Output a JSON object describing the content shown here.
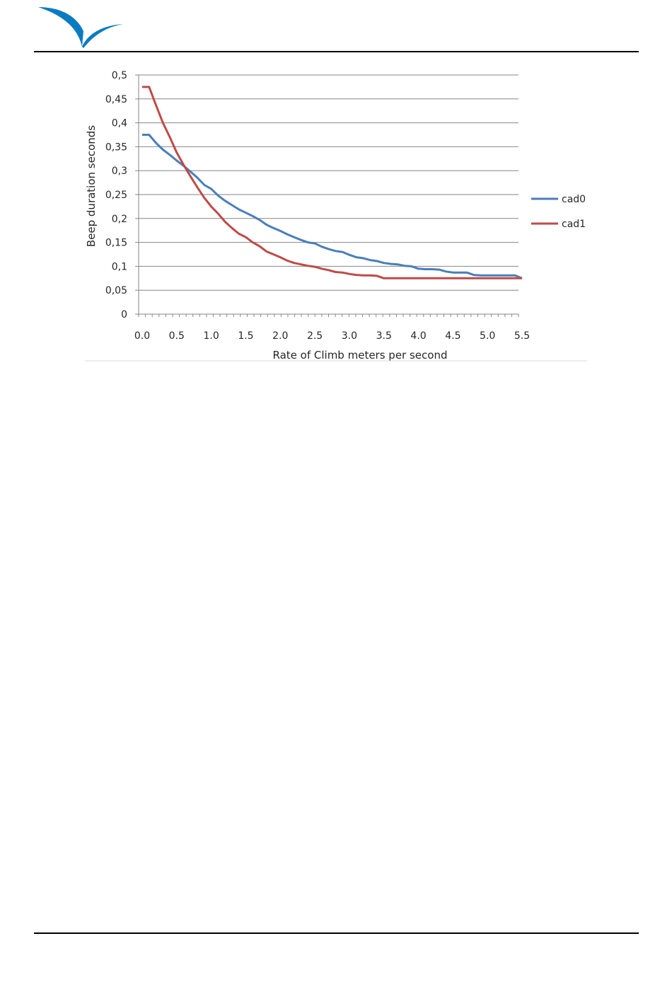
{
  "chart_data": {
    "type": "line",
    "xlabel": "Rate of Climb meters per second",
    "ylabel": "Beep duration seconds",
    "xlim": [
      0,
      5.5
    ],
    "ylim": [
      0,
      0.5
    ],
    "x_tick_labels": [
      "0.0",
      "0.5",
      "1.0",
      "1.5",
      "2.0",
      "2.5",
      "3.0",
      "3.5",
      "4.0",
      "4.5",
      "5.0",
      "5.5"
    ],
    "y_tick_labels": [
      "0",
      "0,05",
      "0,1",
      "0,15",
      "0,2",
      "0,25",
      "0,3",
      "0,35",
      "0,4",
      "0,45",
      "0,5"
    ],
    "grid": true,
    "legend_position": "right",
    "series": [
      {
        "name": "cad0",
        "color": "#4A7EBB",
        "x": [
          0,
          0.1,
          0.2,
          0.3,
          0.4,
          0.5,
          0.6,
          0.7,
          0.8,
          0.9,
          1.0,
          1.1,
          1.2,
          1.3,
          1.4,
          1.5,
          1.6,
          1.7,
          1.8,
          1.9,
          2.0,
          2.1,
          2.2,
          2.3,
          2.4,
          2.5,
          2.6,
          2.7,
          2.8,
          2.9,
          3.0,
          3.1,
          3.2,
          3.3,
          3.4,
          3.5,
          3.6,
          3.7,
          3.8,
          3.9,
          4.0,
          4.1,
          4.2,
          4.3,
          4.4,
          4.5,
          4.6,
          4.7,
          4.8,
          4.9,
          5.0,
          5.1,
          5.2,
          5.3,
          5.4,
          5.5
        ],
        "values": [
          0.375,
          0.375,
          0.358,
          0.344,
          0.333,
          0.321,
          0.31,
          0.298,
          0.285,
          0.27,
          0.262,
          0.248,
          0.237,
          0.228,
          0.219,
          0.212,
          0.205,
          0.197,
          0.187,
          0.18,
          0.174,
          0.167,
          0.161,
          0.155,
          0.15,
          0.148,
          0.141,
          0.136,
          0.132,
          0.13,
          0.124,
          0.119,
          0.117,
          0.113,
          0.111,
          0.107,
          0.105,
          0.104,
          0.101,
          0.1,
          0.095,
          0.094,
          0.094,
          0.093,
          0.089,
          0.087,
          0.087,
          0.087,
          0.082,
          0.081,
          0.081,
          0.081,
          0.081,
          0.081,
          0.081,
          0.075
        ]
      },
      {
        "name": "cad1",
        "color": "#BE4B48",
        "x": [
          0,
          0.1,
          0.2,
          0.3,
          0.4,
          0.5,
          0.6,
          0.7,
          0.8,
          0.9,
          1.0,
          1.1,
          1.2,
          1.3,
          1.4,
          1.5,
          1.6,
          1.7,
          1.8,
          1.9,
          2.0,
          2.1,
          2.2,
          2.3,
          2.4,
          2.5,
          2.6,
          2.7,
          2.8,
          2.9,
          3.0,
          3.1,
          3.2,
          3.3,
          3.4,
          3.5,
          3.6,
          3.7,
          3.8,
          3.9,
          4.0,
          4.1,
          4.2,
          4.3,
          4.4,
          4.5,
          4.6,
          4.7,
          4.8,
          4.9,
          5.0,
          5.1,
          5.2,
          5.3,
          5.4,
          5.5
        ],
        "values": [
          0.475,
          0.475,
          0.437,
          0.4,
          0.37,
          0.338,
          0.312,
          0.288,
          0.265,
          0.243,
          0.225,
          0.21,
          0.193,
          0.18,
          0.168,
          0.161,
          0.15,
          0.142,
          0.131,
          0.125,
          0.119,
          0.112,
          0.107,
          0.104,
          0.101,
          0.099,
          0.095,
          0.092,
          0.088,
          0.087,
          0.084,
          0.082,
          0.081,
          0.081,
          0.08,
          0.075,
          0.075,
          0.075,
          0.075,
          0.075,
          0.075,
          0.075,
          0.075,
          0.075,
          0.075,
          0.075,
          0.075,
          0.075,
          0.075,
          0.075,
          0.075,
          0.075,
          0.075,
          0.075,
          0.075,
          0.075
        ]
      }
    ]
  }
}
